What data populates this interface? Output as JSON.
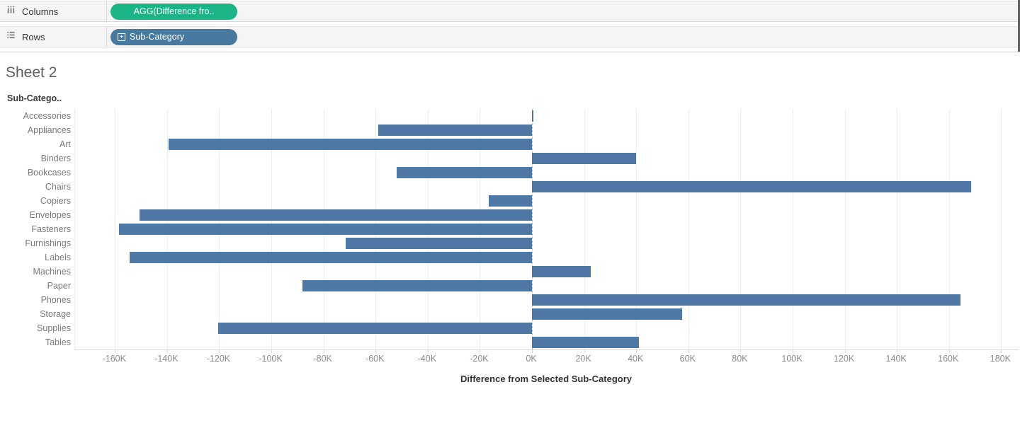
{
  "shelves": {
    "columns": {
      "label": "Columns",
      "pill": "AGG(Difference fro.."
    },
    "rows": {
      "label": "Rows",
      "pill": "Sub-Category",
      "expand_glyph": "+"
    }
  },
  "sheet": {
    "title": "Sheet 2"
  },
  "colors": {
    "bar": "#4e79a7",
    "pill_green": "#1bb487",
    "pill_blue": "#487a9f",
    "gridline": "#ededf0",
    "zero_line": "#b3b3b3"
  },
  "chart_data": {
    "type": "bar",
    "orientation": "horizontal",
    "title": "Sheet 2",
    "row_header": "Sub-Catego..",
    "xlabel": "Difference from Selected Sub-Category",
    "grid": true,
    "zero_reference_line": true,
    "xlim": [
      -175300,
      186700
    ],
    "categories": [
      "Accessories",
      "Appliances",
      "Art",
      "Binders",
      "Bookcases",
      "Chairs",
      "Copiers",
      "Envelopes",
      "Fasteners",
      "Furnishings",
      "Labels",
      "Machines",
      "Paper",
      "Phones",
      "Storage",
      "Supplies",
      "Tables"
    ],
    "values": [
      0,
      -59000,
      -139500,
      40000,
      -52000,
      168500,
      -16500,
      -150500,
      -158500,
      -71500,
      -154500,
      22500,
      -88000,
      164500,
      57500,
      -120500,
      41000
    ],
    "ticks": [
      {
        "value": -160000,
        "label": "-160K"
      },
      {
        "value": -140000,
        "label": "-140K"
      },
      {
        "value": -120000,
        "label": "-120K"
      },
      {
        "value": -100000,
        "label": "-100K"
      },
      {
        "value": -80000,
        "label": "-80K"
      },
      {
        "value": -60000,
        "label": "-60K"
      },
      {
        "value": -40000,
        "label": "-40K"
      },
      {
        "value": -20000,
        "label": "-20K"
      },
      {
        "value": 0,
        "label": "0K"
      },
      {
        "value": 20000,
        "label": "20K"
      },
      {
        "value": 40000,
        "label": "40K"
      },
      {
        "value": 60000,
        "label": "60K"
      },
      {
        "value": 80000,
        "label": "80K"
      },
      {
        "value": 100000,
        "label": "100K"
      },
      {
        "value": 120000,
        "label": "120K"
      },
      {
        "value": 140000,
        "label": "140K"
      },
      {
        "value": 160000,
        "label": "160K"
      },
      {
        "value": 180000,
        "label": "180K"
      }
    ]
  }
}
